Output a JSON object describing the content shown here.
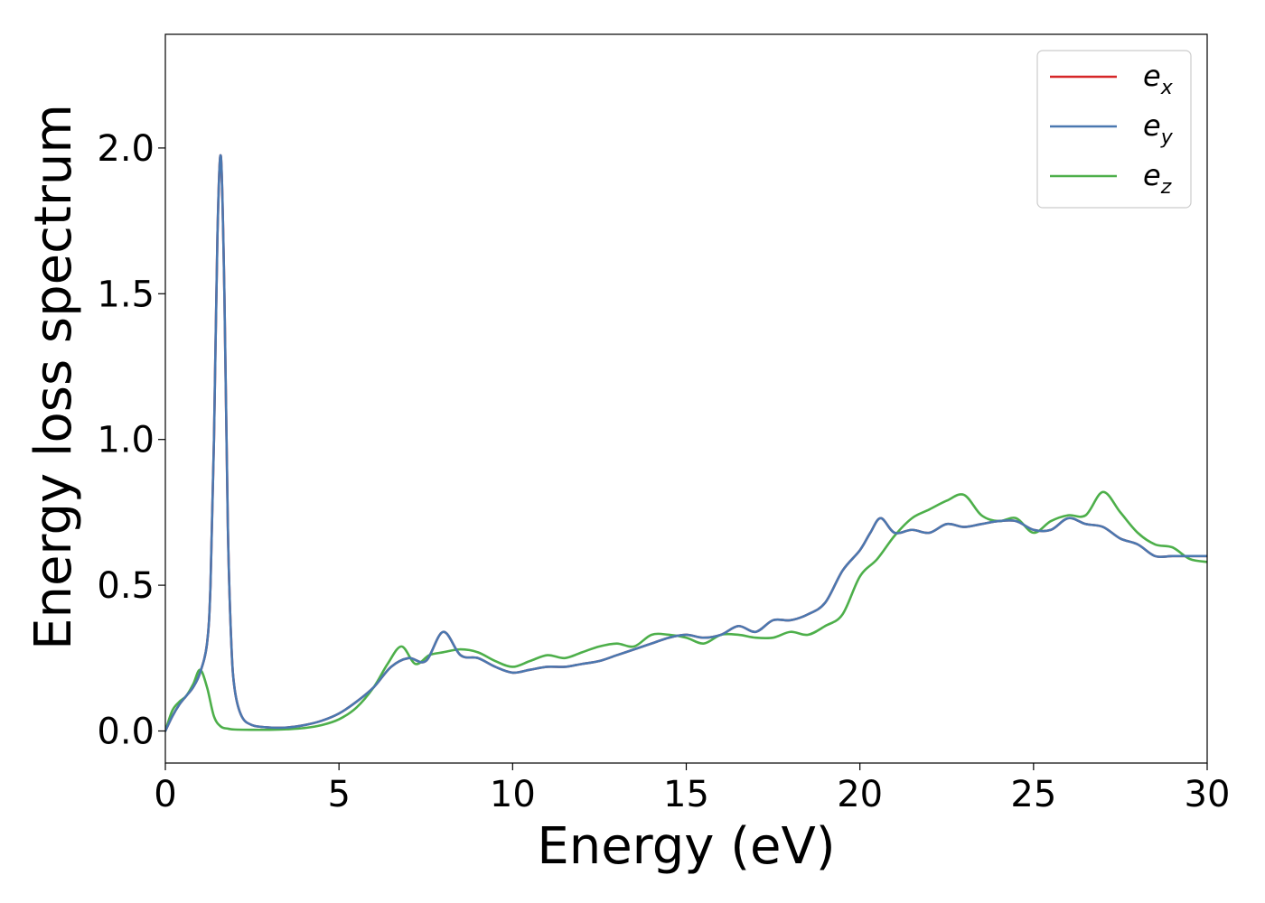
{
  "chart_data": {
    "type": "line",
    "xlabel": "Energy (eV)",
    "ylabel": "Energy loss spectrum",
    "xlim": [
      0,
      30
    ],
    "ylim": [
      -0.11,
      2.39
    ],
    "xticks": [
      0,
      5,
      10,
      15,
      20,
      25,
      30
    ],
    "yticks": [
      0.0,
      0.5,
      1.0,
      1.5,
      2.0
    ],
    "xtick_labels": [
      "0",
      "5",
      "10",
      "15",
      "20",
      "25",
      "30"
    ],
    "ytick_labels": [
      "0.0",
      "0.5",
      "1.0",
      "1.5",
      "2.0"
    ],
    "grid": false,
    "legend_position": "top-right",
    "series": [
      {
        "name": "e_x",
        "label_main": "e",
        "label_sub": "x",
        "color": "#d62728",
        "x": [
          0,
          0.2,
          0.4,
          0.6,
          0.8,
          1.0,
          1.2,
          1.3,
          1.4,
          1.5,
          1.6,
          1.7,
          1.8,
          1.9,
          2.0,
          2.2,
          2.5,
          3.0,
          3.5,
          4.0,
          4.5,
          5.0,
          5.5,
          6.0,
          6.5,
          7.0,
          7.5,
          8.0,
          8.5,
          9.0,
          9.5,
          10.0,
          10.5,
          11.0,
          11.5,
          12.0,
          12.5,
          13.0,
          13.5,
          14.0,
          14.5,
          15.0,
          15.5,
          16.0,
          16.5,
          17.0,
          17.5,
          18.0,
          18.5,
          19.0,
          19.5,
          20.0,
          20.3,
          20.6,
          21.0,
          21.5,
          22.0,
          22.5,
          23.0,
          23.5,
          24.0,
          24.5,
          25.0,
          25.5,
          26.0,
          26.5,
          27.0,
          27.5,
          28.0,
          28.5,
          29.0,
          29.5,
          30.0
        ],
        "y": [
          0.0,
          0.05,
          0.09,
          0.12,
          0.15,
          0.2,
          0.3,
          0.5,
          1.0,
          1.7,
          1.97,
          1.5,
          0.7,
          0.3,
          0.14,
          0.05,
          0.02,
          0.012,
          0.012,
          0.02,
          0.035,
          0.06,
          0.1,
          0.15,
          0.22,
          0.25,
          0.24,
          0.34,
          0.26,
          0.25,
          0.22,
          0.2,
          0.21,
          0.22,
          0.22,
          0.23,
          0.24,
          0.26,
          0.28,
          0.3,
          0.32,
          0.33,
          0.32,
          0.33,
          0.36,
          0.34,
          0.38,
          0.38,
          0.4,
          0.44,
          0.55,
          0.62,
          0.68,
          0.73,
          0.68,
          0.69,
          0.68,
          0.71,
          0.7,
          0.71,
          0.72,
          0.72,
          0.69,
          0.69,
          0.73,
          0.71,
          0.7,
          0.66,
          0.64,
          0.6,
          0.6,
          0.6,
          0.6
        ]
      },
      {
        "name": "e_y",
        "label_main": "e",
        "label_sub": "y",
        "color": "#4a78b0",
        "x": [
          0,
          0.2,
          0.4,
          0.6,
          0.8,
          1.0,
          1.2,
          1.3,
          1.4,
          1.5,
          1.6,
          1.7,
          1.8,
          1.9,
          2.0,
          2.2,
          2.5,
          3.0,
          3.5,
          4.0,
          4.5,
          5.0,
          5.5,
          6.0,
          6.5,
          7.0,
          7.5,
          8.0,
          8.5,
          9.0,
          9.5,
          10.0,
          10.5,
          11.0,
          11.5,
          12.0,
          12.5,
          13.0,
          13.5,
          14.0,
          14.5,
          15.0,
          15.5,
          16.0,
          16.5,
          17.0,
          17.5,
          18.0,
          18.5,
          19.0,
          19.5,
          20.0,
          20.3,
          20.6,
          21.0,
          21.5,
          22.0,
          22.5,
          23.0,
          23.5,
          24.0,
          24.5,
          25.0,
          25.5,
          26.0,
          26.5,
          27.0,
          27.5,
          28.0,
          28.5,
          29.0,
          29.5,
          30.0
        ],
        "y": [
          0.0,
          0.05,
          0.09,
          0.12,
          0.15,
          0.2,
          0.3,
          0.5,
          1.0,
          1.7,
          1.97,
          1.5,
          0.7,
          0.3,
          0.14,
          0.05,
          0.02,
          0.012,
          0.012,
          0.02,
          0.035,
          0.06,
          0.1,
          0.15,
          0.22,
          0.25,
          0.24,
          0.34,
          0.26,
          0.25,
          0.22,
          0.2,
          0.21,
          0.22,
          0.22,
          0.23,
          0.24,
          0.26,
          0.28,
          0.3,
          0.32,
          0.33,
          0.32,
          0.33,
          0.36,
          0.34,
          0.38,
          0.38,
          0.4,
          0.44,
          0.55,
          0.62,
          0.68,
          0.73,
          0.68,
          0.69,
          0.68,
          0.71,
          0.7,
          0.71,
          0.72,
          0.72,
          0.69,
          0.69,
          0.73,
          0.71,
          0.7,
          0.66,
          0.64,
          0.6,
          0.6,
          0.6,
          0.6
        ]
      },
      {
        "name": "e_z",
        "label_main": "e",
        "label_sub": "z",
        "color": "#4daf4a",
        "x": [
          0,
          0.2,
          0.4,
          0.6,
          0.8,
          1.0,
          1.2,
          1.4,
          1.6,
          1.8,
          2.0,
          2.5,
          3.0,
          3.5,
          4.0,
          4.5,
          5.0,
          5.5,
          6.0,
          6.4,
          6.8,
          7.2,
          7.6,
          8.0,
          8.5,
          9.0,
          9.5,
          10.0,
          10.5,
          11.0,
          11.5,
          12.0,
          12.5,
          13.0,
          13.5,
          14.0,
          14.5,
          15.0,
          15.5,
          16.0,
          16.5,
          17.0,
          17.5,
          18.0,
          18.5,
          19.0,
          19.5,
          20.0,
          20.5,
          21.0,
          21.5,
          22.0,
          22.5,
          23.0,
          23.5,
          24.0,
          24.5,
          25.0,
          25.5,
          26.0,
          26.5,
          27.0,
          27.5,
          28.0,
          28.5,
          29.0,
          29.5,
          30.0
        ],
        "y": [
          0.0,
          0.07,
          0.1,
          0.12,
          0.16,
          0.21,
          0.15,
          0.05,
          0.015,
          0.008,
          0.005,
          0.004,
          0.004,
          0.006,
          0.01,
          0.02,
          0.04,
          0.08,
          0.15,
          0.23,
          0.29,
          0.23,
          0.26,
          0.27,
          0.28,
          0.27,
          0.24,
          0.22,
          0.24,
          0.26,
          0.25,
          0.27,
          0.29,
          0.3,
          0.29,
          0.33,
          0.33,
          0.32,
          0.3,
          0.33,
          0.33,
          0.32,
          0.32,
          0.34,
          0.33,
          0.36,
          0.4,
          0.53,
          0.59,
          0.67,
          0.73,
          0.76,
          0.79,
          0.81,
          0.74,
          0.72,
          0.73,
          0.68,
          0.72,
          0.74,
          0.74,
          0.82,
          0.75,
          0.68,
          0.64,
          0.63,
          0.59,
          0.58
        ]
      }
    ]
  }
}
